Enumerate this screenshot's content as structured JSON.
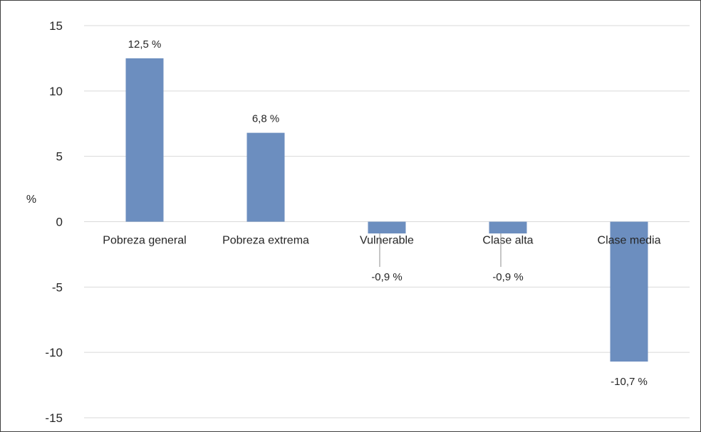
{
  "chart_data": {
    "type": "bar",
    "title": "",
    "xlabel": "",
    "ylabel": "%",
    "ylim": [
      -15,
      15
    ],
    "yticks": [
      15,
      10,
      5,
      0,
      -5,
      -10,
      -15
    ],
    "grid": true,
    "legend": "none",
    "categories": [
      "Pobreza general",
      "Pobreza extrema",
      "Vulnerable",
      "Clase alta",
      "Clase media"
    ],
    "values": [
      12.5,
      6.8,
      -0.9,
      -0.9,
      -10.7
    ],
    "data_labels": [
      "12,5 %",
      "6,8 %",
      "-0,9 %",
      "-0,9 %",
      "-10,7 %"
    ],
    "bar_color": "#6c8ebf",
    "grid_color": "#d9d9d9"
  }
}
